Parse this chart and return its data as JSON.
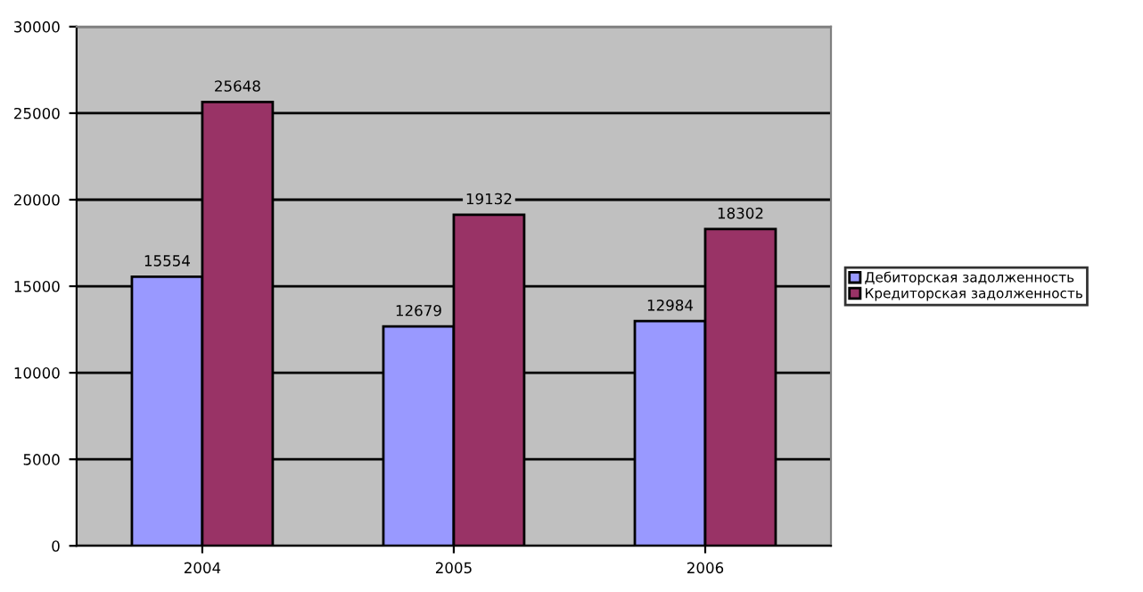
{
  "chart_data": {
    "type": "bar",
    "categories": [
      "2004",
      "2005",
      "2006"
    ],
    "series": [
      {
        "name": "Дебиторская задолженность",
        "color": "#9999ff",
        "values": [
          15554,
          12679,
          12984
        ]
      },
      {
        "name": "Кредиторская задолженность",
        "color": "#993366",
        "values": [
          25648,
          19132,
          18302
        ]
      }
    ],
    "ylim": [
      0,
      30000
    ],
    "yticks": [
      0,
      5000,
      10000,
      15000,
      20000,
      25000,
      30000
    ],
    "grid": "y",
    "legend": "right",
    "data_labels": true
  }
}
